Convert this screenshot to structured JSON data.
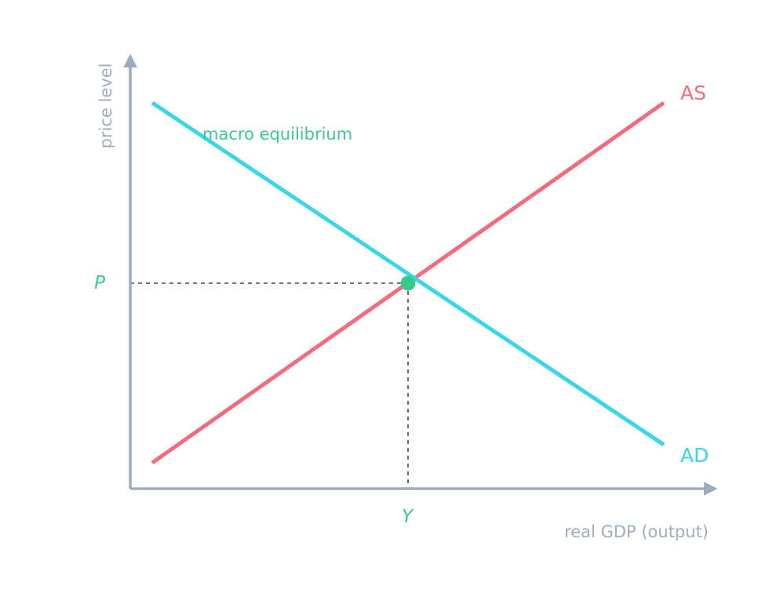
{
  "diagram": {
    "axes": {
      "x_label": "real GDP (output)",
      "y_label": "price level",
      "color": "#9eacbf"
    },
    "curves": [
      {
        "name": "AS",
        "color": "#f26c7d"
      },
      {
        "name": "AD",
        "color": "#38d6e8"
      }
    ],
    "equilibrium": {
      "label": "macro equilibrium",
      "price_label": "P",
      "output_label": "Y",
      "color": "#36cc8e",
      "guide_color": "#3b4a5e"
    }
  }
}
